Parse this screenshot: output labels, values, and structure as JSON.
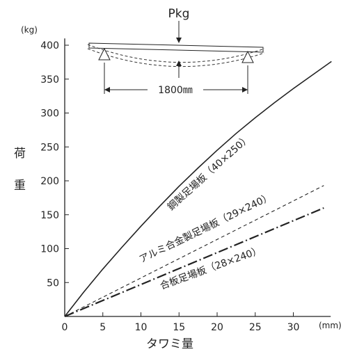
{
  "chart_data": {
    "type": "line",
    "yunit": "(kg)",
    "xunit": "(mm)",
    "ylabel_chars": [
      "荷",
      "重"
    ],
    "xlabel": "タワミ量",
    "xlim": [
      0,
      36
    ],
    "ylim": [
      0,
      410
    ],
    "xticks": [
      0,
      5,
      10,
      15,
      20,
      25,
      30
    ],
    "yticks": [
      50,
      100,
      150,
      200,
      250,
      300,
      350,
      400
    ],
    "series": [
      {
        "name": "鋼製足場板（40×250）",
        "style": "solid",
        "x": [
          0,
          2.5,
          5,
          7.5,
          10,
          12.5,
          15,
          17.5,
          20,
          22.5,
          25,
          27.5,
          30,
          32.5,
          35
        ],
        "y": [
          0,
          36,
          70,
          102,
          133,
          163,
          192,
          219,
          245,
          270,
          293,
          315,
          336,
          356,
          376
        ]
      },
      {
        "name": "アルミ合金製足場板（29×240）",
        "style": "dashed",
        "x": [
          0,
          34
        ],
        "y": [
          0,
          193
        ]
      },
      {
        "name": "合板足場板（28×240）",
        "style": "dashdot",
        "x": [
          0,
          34
        ],
        "y": [
          0,
          160
        ]
      }
    ],
    "diagram": {
      "load_label": "Pkg",
      "span_label": "1800㎜"
    }
  }
}
